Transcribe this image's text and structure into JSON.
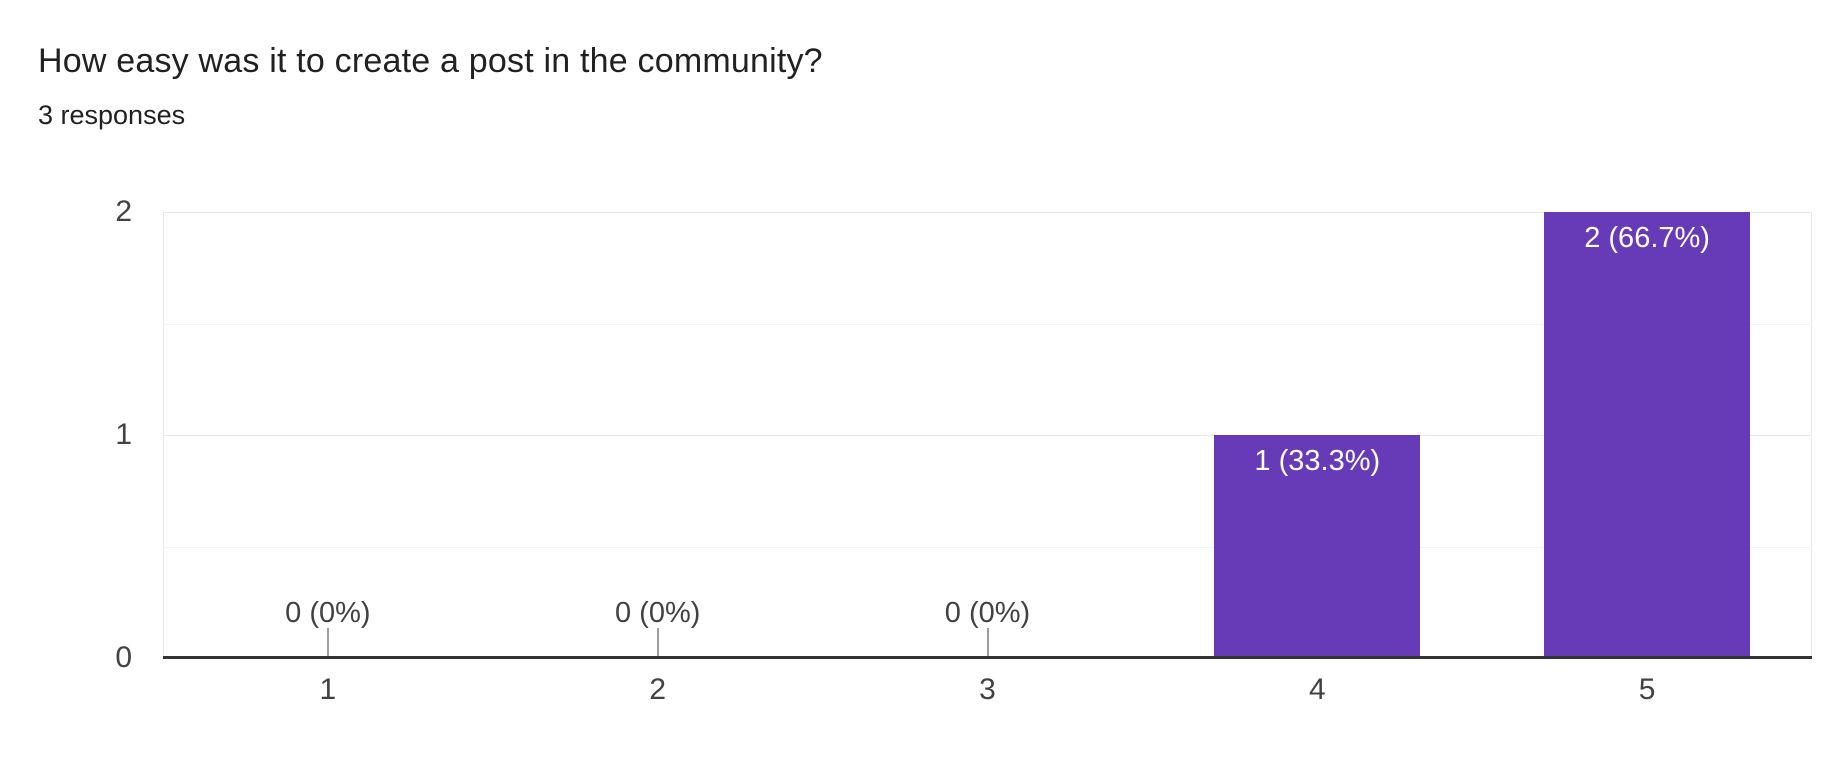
{
  "header": {
    "title": "How easy was it to create a post in the community?",
    "subtitle": "3 responses"
  },
  "chart_data": {
    "type": "bar",
    "title": "How easy was it to create a post in the community?",
    "subtitle": "3 responses",
    "total_responses": 3,
    "categories": [
      "1",
      "2",
      "3",
      "4",
      "5"
    ],
    "values": [
      0,
      0,
      0,
      1,
      2
    ],
    "value_labels": [
      "0 (0%)",
      "0 (0%)",
      "0 (0%)",
      "1 (33.3%)",
      "2 (66.7%)"
    ],
    "xlabel": "",
    "ylabel": "",
    "ylim": [
      0,
      2
    ],
    "yticks": [
      0,
      1,
      2
    ],
    "grid": true,
    "legend": "none",
    "colors": {
      "bar": "#673ab7",
      "bar_label_text": "#ffffff",
      "annotation_text": "#424242",
      "axis_label_text": "#424242",
      "axis_line": "#333333",
      "gridline_major": "#e9e9e9",
      "gridline_minor": "#f4f4f4",
      "background": "#ffffff"
    }
  }
}
